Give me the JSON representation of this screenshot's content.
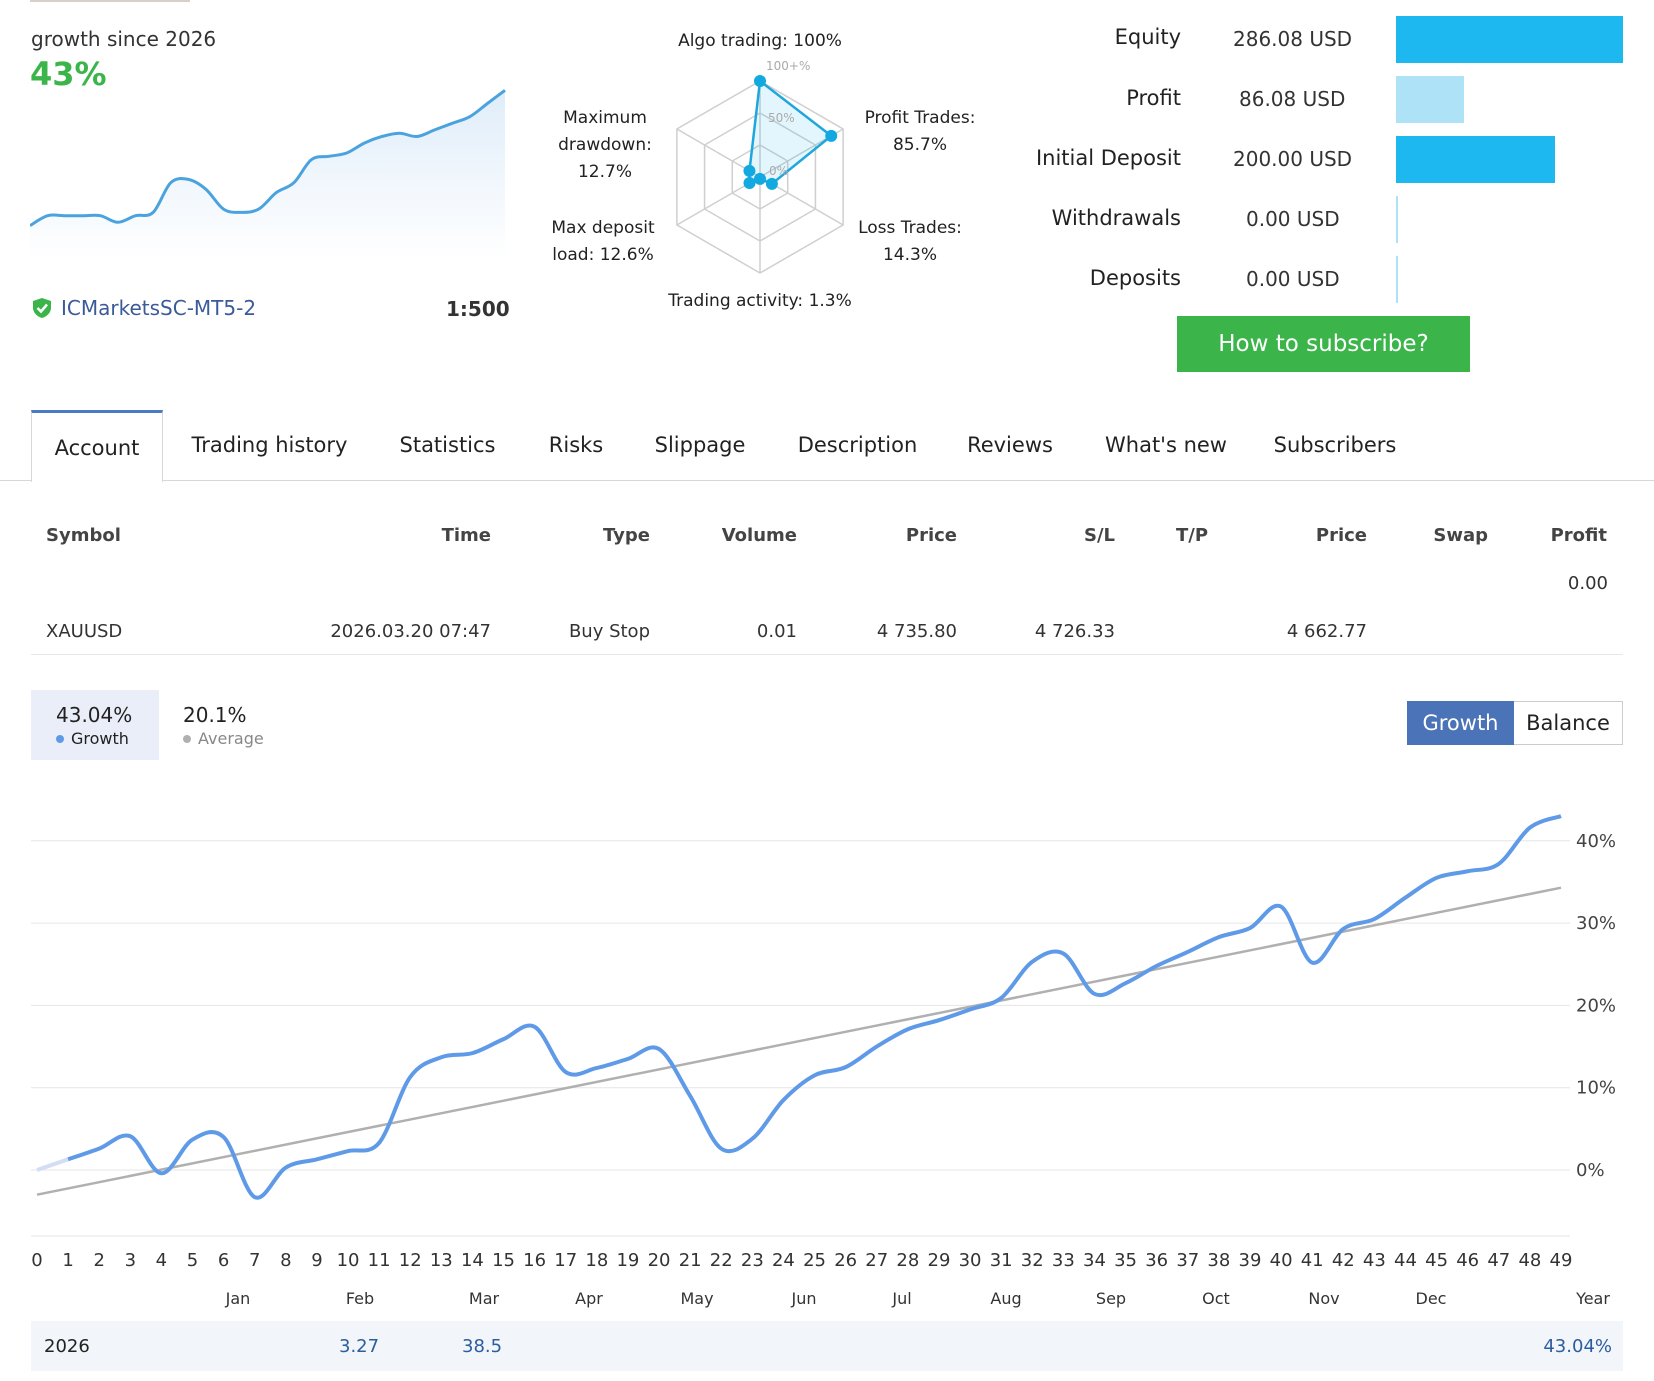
{
  "summary": {
    "growth_since": "growth since 2026",
    "growth_value": "43%",
    "broker": "ICMarketsSC-MT5-2",
    "leverage": "1:500"
  },
  "radar": {
    "algo": "Algo trading: 100%",
    "scale_100": "100+%",
    "scale_50": "50%",
    "scale_0": "0%",
    "max_drawdown_1": "Maximum",
    "max_drawdown_2": "drawdown:",
    "max_drawdown_3": "12.7%",
    "profit_trades_1": "Profit Trades:",
    "profit_trades_2": "85.7%",
    "max_deposit_1": "Max deposit",
    "max_deposit_2": "load: 12.6%",
    "loss_trades_1": "Loss Trades:",
    "loss_trades_2": "14.3%",
    "trading_activity": "Trading activity: 1.3%",
    "values": {
      "algo": 1.0,
      "profit_trades": 0.857,
      "loss_trades": 0.143,
      "trading_activity": 0.013,
      "max_deposit": 0.126,
      "max_drawdown": 0.127
    }
  },
  "equity_panel": [
    {
      "label": "Equity",
      "value": "286.08 USD",
      "fraction": 1.0,
      "color": "#1eb8f0"
    },
    {
      "label": "Profit",
      "value": "86.08 USD",
      "fraction": 0.3,
      "color": "#aee3f7"
    },
    {
      "label": "Initial Deposit",
      "value": "200.00 USD",
      "fraction": 0.7,
      "color": "#1eb8f0"
    },
    {
      "label": "Withdrawals",
      "value": "0.00 USD",
      "fraction": 0.0,
      "color": "#aee3f7"
    },
    {
      "label": "Deposits",
      "value": "0.00 USD",
      "fraction": 0.0,
      "color": "#aee3f7"
    }
  ],
  "subscribe_label": "How to subscribe?",
  "tabs": [
    "Account",
    "Trading history",
    "Statistics",
    "Risks",
    "Slippage",
    "Description",
    "Reviews",
    "What's new",
    "Subscribers"
  ],
  "table": {
    "headers": [
      "Symbol",
      "Time",
      "Type",
      "Volume",
      "Price",
      "S/L",
      "T/P",
      "Price",
      "Swap",
      "Profit"
    ],
    "total_profit": "0.00",
    "row": {
      "symbol": "XAUUSD",
      "time": "2026.03.20 07:47",
      "type": "Buy Stop",
      "volume": "0.01",
      "price": "4 735.80",
      "sl": "4 726.33",
      "tp": "",
      "price2": "4 662.77",
      "swap": "",
      "profit": ""
    }
  },
  "growth_stats": {
    "growth_value": "43.04%",
    "growth_label": "Growth",
    "average_value": "20.1%",
    "average_label": "Average"
  },
  "chart_buttons": {
    "growth": "Growth",
    "balance": "Balance"
  },
  "chart_data": {
    "type": "line",
    "x": [
      0,
      1,
      2,
      3,
      4,
      5,
      6,
      7,
      8,
      9,
      10,
      11,
      12,
      13,
      14,
      15,
      16,
      17,
      18,
      19,
      20,
      21,
      22,
      23,
      24,
      25,
      26,
      27,
      28,
      29,
      30,
      31,
      32,
      33,
      34,
      35,
      36,
      37,
      38,
      39,
      40,
      41,
      42,
      43,
      44,
      45,
      46,
      47,
      48,
      49
    ],
    "series": [
      {
        "name": "Growth",
        "color": "#5f9ae8",
        "values": [
          0.0,
          1.3,
          2.6,
          4.1,
          -0.4,
          3.7,
          4.0,
          -3.3,
          0.3,
          1.3,
          2.3,
          3.3,
          11.3,
          13.7,
          14.2,
          15.9,
          17.4,
          11.9,
          12.4,
          13.5,
          14.7,
          9.0,
          2.6,
          3.8,
          8.5,
          11.5,
          12.5,
          15.0,
          17.1,
          18.2,
          19.5,
          20.9,
          25.3,
          26.3,
          21.4,
          22.7,
          24.8,
          26.5,
          28.3,
          29.4,
          32.0,
          25.2,
          29.3,
          30.5,
          33.1,
          35.5,
          36.3,
          37.2,
          41.6,
          43.0
        ]
      },
      {
        "name": "Average",
        "color": "#b0b0b0",
        "values": [
          -3.0,
          -2.2,
          -1.5,
          -0.7,
          0.0,
          0.8,
          1.6,
          2.4,
          3.1,
          3.9,
          4.6,
          5.4,
          6.2,
          6.9,
          7.7,
          8.5,
          9.2,
          10.0,
          10.7,
          11.5,
          12.3,
          13.0,
          13.8,
          14.5,
          15.3,
          16.1,
          16.8,
          17.6,
          18.4,
          19.1,
          19.9,
          20.6,
          21.4,
          22.2,
          22.9,
          23.7,
          24.4,
          25.2,
          26.0,
          26.7,
          27.5,
          28.3,
          29.0,
          29.8,
          30.5,
          31.3,
          32.1,
          32.8,
          33.6,
          34.3
        ]
      }
    ],
    "y_ticks": [
      "0%",
      "10%",
      "20%",
      "30%",
      "40%"
    ],
    "ylim": [
      -8,
      45
    ],
    "months": [
      "Jan",
      "Feb",
      "Mar",
      "Apr",
      "May",
      "Jun",
      "Jul",
      "Aug",
      "Sep",
      "Oct",
      "Nov",
      "Dec",
      "Year"
    ],
    "grid": true
  },
  "mini_chart_values": [
    8,
    11,
    11,
    11,
    11,
    9,
    11,
    12,
    21,
    22,
    19,
    13,
    12,
    13,
    18,
    21,
    28,
    29,
    30,
    33,
    35,
    36,
    35,
    37,
    39,
    41,
    45,
    49
  ],
  "year_row": {
    "year": "2026",
    "feb": "3.27",
    "mar": "38.5",
    "total": "43.04%"
  }
}
